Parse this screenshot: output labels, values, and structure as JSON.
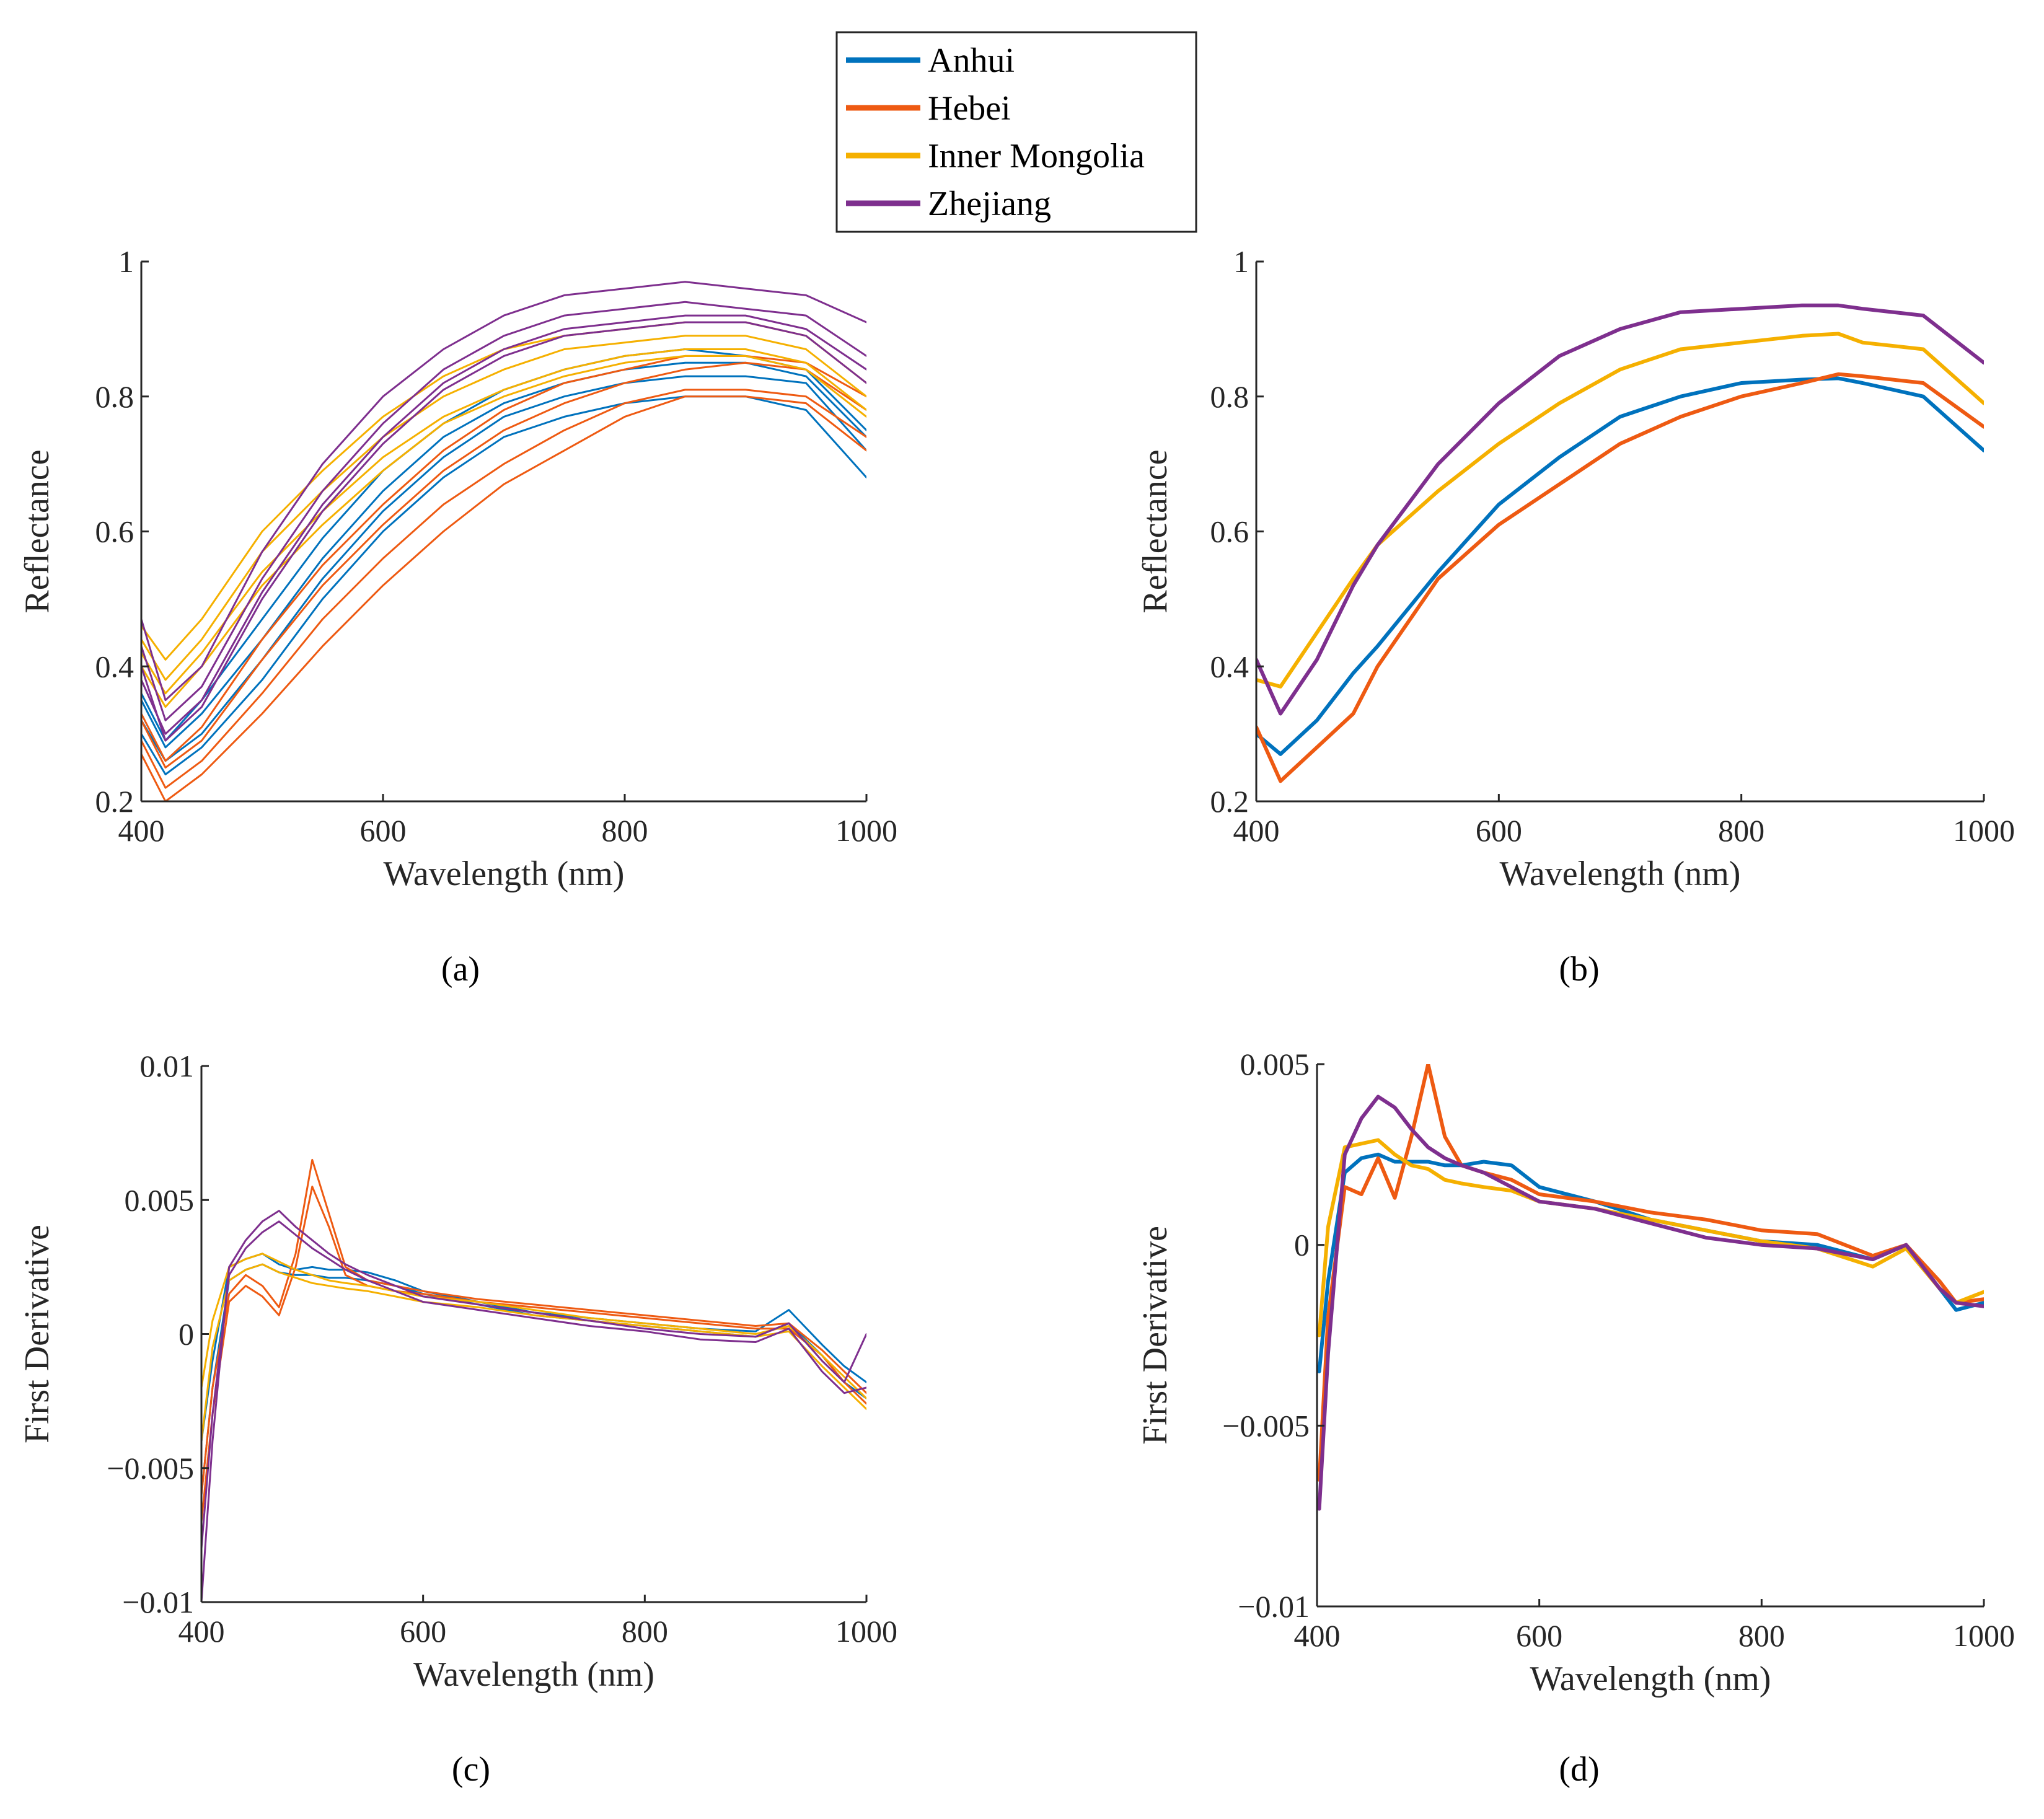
{
  "legend": {
    "entries": [
      {
        "name": "Anhui",
        "color": "#0072BD"
      },
      {
        "name": "Hebei",
        "color": "#EE5A12"
      },
      {
        "name": "Inner Mongolia",
        "color": "#F5B000"
      },
      {
        "name": "Zhejiang",
        "color": "#7E2F8E"
      }
    ]
  },
  "chart_data": [
    {
      "id": "a",
      "type": "line",
      "caption": "(a)",
      "xlabel": "Wavelength (nm)",
      "ylabel": "Reflectance",
      "xlim": [
        400,
        1000
      ],
      "ylim": [
        0.2,
        1.0
      ],
      "xticks": [
        400,
        600,
        800,
        1000
      ],
      "xtick_labels": [
        "400",
        "600",
        "800",
        "1000"
      ],
      "yticks": [
        0.2,
        0.4,
        0.6,
        0.8,
        1.0
      ],
      "ytick_labels": [
        "0.2",
        "0.4",
        "0.6",
        "0.8",
        "1"
      ],
      "note": "individual sample spectra per region (approximate envelopes shown as sample curves)",
      "x": [
        400,
        420,
        450,
        500,
        550,
        600,
        650,
        700,
        750,
        800,
        850,
        900,
        950,
        1000
      ],
      "series": [
        {
          "name": "Anhui",
          "color": "#0072BD",
          "samples": [
            [
              0.35,
              0.28,
              0.33,
              0.44,
              0.56,
              0.66,
              0.74,
              0.79,
              0.82,
              0.84,
              0.85,
              0.85,
              0.83,
              0.74
            ],
            [
              0.32,
              0.26,
              0.3,
              0.41,
              0.53,
              0.63,
              0.71,
              0.77,
              0.8,
              0.82,
              0.83,
              0.83,
              0.82,
              0.72
            ],
            [
              0.3,
              0.24,
              0.28,
              0.38,
              0.5,
              0.6,
              0.68,
              0.74,
              0.77,
              0.79,
              0.8,
              0.8,
              0.78,
              0.68
            ],
            [
              0.36,
              0.29,
              0.35,
              0.47,
              0.59,
              0.69,
              0.76,
              0.81,
              0.84,
              0.86,
              0.87,
              0.86,
              0.84,
              0.75
            ]
          ]
        },
        {
          "name": "Hebei",
          "color": "#EE5A12",
          "samples": [
            [
              0.32,
              0.25,
              0.29,
              0.41,
              0.52,
              0.61,
              0.69,
              0.75,
              0.79,
              0.82,
              0.84,
              0.85,
              0.84,
              0.78
            ],
            [
              0.29,
              0.22,
              0.26,
              0.36,
              0.47,
              0.56,
              0.64,
              0.7,
              0.75,
              0.79,
              0.81,
              0.81,
              0.8,
              0.74
            ],
            [
              0.27,
              0.2,
              0.24,
              0.33,
              0.43,
              0.52,
              0.6,
              0.67,
              0.72,
              0.77,
              0.8,
              0.8,
              0.79,
              0.72
            ],
            [
              0.33,
              0.26,
              0.31,
              0.44,
              0.55,
              0.64,
              0.72,
              0.78,
              0.82,
              0.84,
              0.86,
              0.86,
              0.85,
              0.8
            ]
          ]
        },
        {
          "name": "Inner Mongolia",
          "color": "#F5B000",
          "samples": [
            [
              0.44,
              0.38,
              0.44,
              0.57,
              0.66,
              0.74,
              0.8,
              0.84,
              0.87,
              0.88,
              0.89,
              0.89,
              0.87,
              0.8
            ],
            [
              0.42,
              0.36,
              0.42,
              0.54,
              0.63,
              0.71,
              0.77,
              0.81,
              0.84,
              0.86,
              0.87,
              0.87,
              0.85,
              0.78
            ],
            [
              0.46,
              0.41,
              0.47,
              0.6,
              0.69,
              0.77,
              0.83,
              0.87,
              0.89,
              0.9,
              0.91,
              0.91,
              0.89,
              0.82
            ],
            [
              0.4,
              0.34,
              0.4,
              0.52,
              0.61,
              0.69,
              0.76,
              0.8,
              0.83,
              0.85,
              0.86,
              0.86,
              0.84,
              0.77
            ]
          ]
        },
        {
          "name": "Zhejiang",
          "color": "#7E2F8E",
          "samples": [
            [
              0.47,
              0.35,
              0.4,
              0.57,
              0.7,
              0.8,
              0.87,
              0.92,
              0.95,
              0.96,
              0.97,
              0.96,
              0.95,
              0.91
            ],
            [
              0.43,
              0.32,
              0.37,
              0.53,
              0.66,
              0.76,
              0.84,
              0.89,
              0.92,
              0.93,
              0.94,
              0.93,
              0.92,
              0.86
            ],
            [
              0.4,
              0.29,
              0.34,
              0.5,
              0.63,
              0.73,
              0.81,
              0.86,
              0.89,
              0.9,
              0.91,
              0.91,
              0.89,
              0.82
            ],
            [
              0.38,
              0.3,
              0.35,
              0.51,
              0.64,
              0.74,
              0.82,
              0.87,
              0.9,
              0.91,
              0.92,
              0.92,
              0.9,
              0.84
            ]
          ]
        }
      ]
    },
    {
      "id": "b",
      "type": "line",
      "caption": "(b)",
      "xlabel": "Wavelength (nm)",
      "ylabel": "Reflectance",
      "xlim": [
        400,
        1000
      ],
      "ylim": [
        0.2,
        1.0
      ],
      "xticks": [
        400,
        600,
        800,
        1000
      ],
      "xtick_labels": [
        "400",
        "600",
        "800",
        "1000"
      ],
      "yticks": [
        0.2,
        0.4,
        0.6,
        0.8,
        1.0
      ],
      "ytick_labels": [
        "0.2",
        "0.4",
        "0.6",
        "0.8",
        "1"
      ],
      "x": [
        400,
        420,
        450,
        480,
        500,
        550,
        600,
        650,
        700,
        750,
        800,
        850,
        880,
        900,
        950,
        1000
      ],
      "series": [
        {
          "name": "Anhui",
          "color": "#0072BD",
          "values": [
            0.3,
            0.27,
            0.32,
            0.39,
            0.43,
            0.54,
            0.64,
            0.71,
            0.77,
            0.8,
            0.82,
            0.825,
            0.827,
            0.82,
            0.8,
            0.72
          ]
        },
        {
          "name": "Hebei",
          "color": "#EE5A12",
          "values": [
            0.31,
            0.23,
            0.28,
            0.33,
            0.4,
            0.53,
            0.61,
            0.67,
            0.73,
            0.77,
            0.8,
            0.82,
            0.833,
            0.83,
            0.82,
            0.755
          ]
        },
        {
          "name": "Inner Mongolia",
          "color": "#F5B000",
          "values": [
            0.38,
            0.37,
            0.45,
            0.53,
            0.58,
            0.66,
            0.73,
            0.79,
            0.84,
            0.87,
            0.88,
            0.89,
            0.893,
            0.88,
            0.87,
            0.79
          ]
        },
        {
          "name": "Zhejiang",
          "color": "#7E2F8E",
          "values": [
            0.41,
            0.33,
            0.41,
            0.52,
            0.58,
            0.7,
            0.79,
            0.86,
            0.9,
            0.925,
            0.93,
            0.935,
            0.935,
            0.93,
            0.92,
            0.85
          ]
        }
      ]
    },
    {
      "id": "c",
      "type": "line",
      "caption": "(c)",
      "xlabel": "Wavelength (nm)",
      "ylabel": "First Derivative",
      "xlim": [
        400,
        1000
      ],
      "ylim": [
        -0.01,
        0.01
      ],
      "xticks": [
        400,
        600,
        800,
        1000
      ],
      "xtick_labels": [
        "400",
        "600",
        "800",
        "1000"
      ],
      "yticks": [
        -0.01,
        -0.005,
        0,
        0.005,
        0.01
      ],
      "ytick_labels": [
        "−0.01",
        "−0.005",
        "0",
        "0.005",
        "0.01"
      ],
      "x": [
        400,
        410,
        425,
        440,
        455,
        470,
        485,
        500,
        515,
        530,
        550,
        575,
        600,
        650,
        700,
        750,
        800,
        850,
        900,
        930,
        960,
        980,
        1000
      ],
      "series": [
        {
          "name": "Anhui",
          "color": "#0072BD",
          "samples": [
            [
              -0.004,
              -0.001,
              0.0025,
              0.0028,
              0.003,
              0.0026,
              0.0024,
              0.0025,
              0.0024,
              0.0024,
              0.0023,
              0.002,
              0.0016,
              0.0012,
              0.0008,
              0.0006,
              0.0004,
              0.0002,
              0.0001,
              0.0009,
              -0.0004,
              -0.0012,
              -0.0018
            ],
            [
              -0.006,
              -0.002,
              0.002,
              0.0024,
              0.0026,
              0.0023,
              0.0022,
              0.0022,
              0.0021,
              0.0021,
              0.002,
              0.0018,
              0.0015,
              0.0011,
              0.0007,
              0.0005,
              0.0003,
              0.0001,
              -0.0001,
              0.0004,
              -0.0008,
              -0.0018,
              -0.0024
            ]
          ]
        },
        {
          "name": "Hebei",
          "color": "#EE5A12",
          "samples": [
            [
              -0.006,
              -0.002,
              0.0015,
              0.0022,
              0.0018,
              0.001,
              0.003,
              0.0065,
              0.0045,
              0.0025,
              0.002,
              0.0018,
              0.0016,
              0.0013,
              0.0011,
              0.0009,
              0.0007,
              0.0005,
              0.0003,
              0.0004,
              -0.0006,
              -0.0014,
              -0.0022
            ],
            [
              -0.007,
              -0.003,
              0.0012,
              0.0018,
              0.0014,
              0.0007,
              0.0025,
              0.0055,
              0.004,
              0.0022,
              0.0018,
              0.0016,
              0.0015,
              0.0012,
              0.001,
              0.0008,
              0.0006,
              0.0004,
              0.0002,
              0.0002,
              -0.0008,
              -0.0018,
              -0.0026
            ]
          ]
        },
        {
          "name": "Inner Mongolia",
          "color": "#F5B000",
          "samples": [
            [
              -0.002,
              0.0005,
              0.0025,
              0.0028,
              0.003,
              0.0027,
              0.0024,
              0.0022,
              0.002,
              0.0019,
              0.0018,
              0.0016,
              0.0014,
              0.0012,
              0.0009,
              0.0006,
              0.0004,
              0.0002,
              0.0,
              0.0003,
              -0.0008,
              -0.0016,
              -0.0024
            ],
            [
              -0.004,
              -0.0005,
              0.002,
              0.0024,
              0.0026,
              0.0023,
              0.0021,
              0.0019,
              0.0018,
              0.0017,
              0.0016,
              0.0014,
              0.0012,
              0.001,
              0.0007,
              0.0005,
              0.0003,
              0.0001,
              -0.0001,
              0.0001,
              -0.0012,
              -0.002,
              -0.0028
            ]
          ]
        },
        {
          "name": "Zhejiang",
          "color": "#7E2F8E",
          "samples": [
            [
              -0.01,
              -0.004,
              0.0025,
              0.0035,
              0.0042,
              0.0046,
              0.004,
              0.0035,
              0.003,
              0.0026,
              0.0022,
              0.0018,
              0.0014,
              0.0011,
              0.0008,
              0.0005,
              0.0002,
              0.0,
              -0.0001,
              0.0004,
              -0.001,
              -0.0018,
              0.0
            ],
            [
              -0.008,
              -0.003,
              0.0022,
              0.0032,
              0.0038,
              0.0042,
              0.0037,
              0.0032,
              0.0028,
              0.0024,
              0.002,
              0.0016,
              0.0012,
              0.0009,
              0.0006,
              0.0003,
              0.0001,
              -0.0002,
              -0.0003,
              0.0002,
              -0.0014,
              -0.0022,
              -0.002
            ]
          ]
        }
      ]
    },
    {
      "id": "d",
      "type": "line",
      "caption": "(d)",
      "xlabel": "Wavelength (nm)",
      "ylabel": "First Derivative",
      "xlim": [
        400,
        1000
      ],
      "ylim": [
        -0.01,
        0.005
      ],
      "xticks": [
        400,
        600,
        800,
        1000
      ],
      "xtick_labels": [
        "400",
        "600",
        "800",
        "1000"
      ],
      "yticks": [
        -0.01,
        -0.005,
        0,
        0.005
      ],
      "ytick_labels": [
        "−0.01",
        "−0.005",
        "0",
        "0.005"
      ],
      "x": [
        402,
        410,
        425,
        440,
        455,
        470,
        485,
        500,
        515,
        530,
        550,
        575,
        600,
        650,
        700,
        750,
        800,
        850,
        900,
        930,
        960,
        975,
        1000
      ],
      "series": [
        {
          "name": "Anhui",
          "color": "#0072BD",
          "values": [
            -0.0035,
            -0.001,
            0.002,
            0.0024,
            0.0025,
            0.0023,
            0.0023,
            0.0023,
            0.0022,
            0.0022,
            0.0023,
            0.0022,
            0.0016,
            0.0012,
            0.0007,
            0.0004,
            0.0001,
            0.0,
            -0.0004,
            0.0,
            -0.0012,
            -0.0018,
            -0.0016
          ]
        },
        {
          "name": "Hebei",
          "color": "#EE5A12",
          "values": [
            -0.0065,
            -0.002,
            0.0016,
            0.0014,
            0.0024,
            0.0013,
            0.003,
            0.005,
            0.003,
            0.0022,
            0.002,
            0.0018,
            0.0014,
            0.0012,
            0.0009,
            0.0007,
            0.0004,
            0.0003,
            -0.0003,
            0.0,
            -0.001,
            -0.0016,
            -0.0015
          ]
        },
        {
          "name": "Inner Mongolia",
          "color": "#F5B000",
          "values": [
            -0.0025,
            0.0005,
            0.0027,
            0.0028,
            0.0029,
            0.0025,
            0.0022,
            0.0021,
            0.0018,
            0.0017,
            0.0016,
            0.0015,
            0.0012,
            0.001,
            0.0007,
            0.0004,
            0.0001,
            -0.0001,
            -0.0006,
            -0.0001,
            -0.0012,
            -0.0016,
            -0.0013
          ]
        },
        {
          "name": "Zhejiang",
          "color": "#7E2F8E",
          "values": [
            -0.0073,
            -0.003,
            0.0025,
            0.0035,
            0.0041,
            0.0038,
            0.0032,
            0.0027,
            0.0024,
            0.0022,
            0.002,
            0.0016,
            0.0012,
            0.001,
            0.0006,
            0.0002,
            0.0,
            -0.0001,
            -0.0004,
            0.0,
            -0.0012,
            -0.0016,
            -0.0017
          ]
        }
      ]
    }
  ]
}
